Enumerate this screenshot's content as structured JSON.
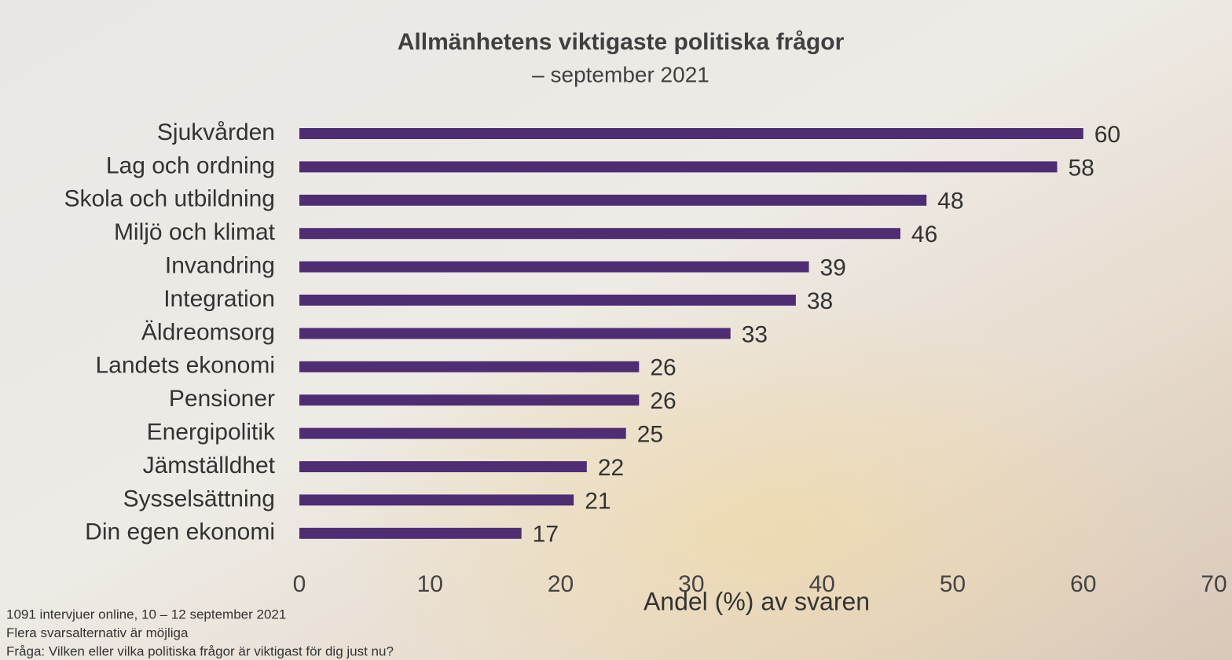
{
  "chart_data": {
    "type": "bar",
    "orientation": "horizontal",
    "title": "Allmänhetens viktigaste politiska frågor",
    "subtitle": "– september 2021",
    "categories": [
      "Sjukvården",
      "Lag och ordning",
      "Skola och utbildning",
      "Miljö och klimat",
      "Invandring",
      "Integration",
      "Äldreomsorg",
      "Landets ekonomi",
      "Pensioner",
      "Energipolitik",
      "Jämställdhet",
      "Sysselsättning",
      "Din egen ekonomi"
    ],
    "values": [
      60,
      58,
      48,
      46,
      39,
      38,
      33,
      26,
      26,
      25,
      22,
      21,
      17
    ],
    "color": "#4e2d73",
    "xlim": [
      0,
      70
    ],
    "xticks": [
      0,
      10,
      20,
      30,
      40,
      50,
      60,
      70
    ],
    "xlabel": "Andel (%) av svaren",
    "grid": false,
    "notes": [
      "1091 intervjuer online, 10 – 12 september 2021",
      "Flera svarsalternativ är möjliga",
      "Fråga: Vilken eller vilka politiska frågor är viktigast för dig just nu?"
    ]
  }
}
